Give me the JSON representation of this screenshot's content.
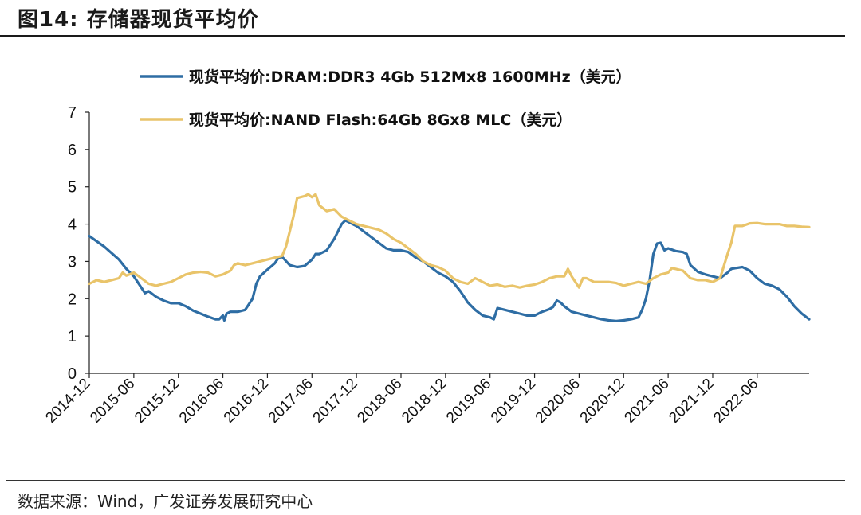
{
  "header": {
    "title": "图14:  存储器现货平均价"
  },
  "footer": {
    "source": "数据来源：Wind，广发证券发展研究中心"
  },
  "chart_data": {
    "type": "line",
    "title": "存储器现货平均价",
    "xlabel": "",
    "ylabel": "",
    "ylim": [
      0,
      7
    ],
    "yticks": [
      0,
      1,
      2,
      3,
      4,
      5,
      6,
      7
    ],
    "x_range": [
      0,
      97
    ],
    "xtick_positions": [
      0,
      6,
      12,
      18,
      24,
      30,
      36,
      42,
      48,
      54,
      60,
      66,
      72,
      78,
      84,
      90
    ],
    "xtick_labels": [
      "2014-12",
      "2015-06",
      "2015-12",
      "2016-06",
      "2016-12",
      "2017-06",
      "2017-12",
      "2018-06",
      "2018-12",
      "2019-06",
      "2019-12",
      "2020-06",
      "2020-12",
      "2021-06",
      "2021-12",
      "2022-06"
    ],
    "legend_position": "top",
    "series": [
      {
        "name": "现货平均价:DRAM:DDR3 4Gb 512Mx8 1600MHz（美元）",
        "color": "#2E6DA4",
        "points": [
          [
            0,
            3.68
          ],
          [
            2,
            3.4
          ],
          [
            4,
            3.05
          ],
          [
            5,
            2.8
          ],
          [
            6,
            2.6
          ],
          [
            7,
            2.3
          ],
          [
            7.5,
            2.15
          ],
          [
            8,
            2.2
          ],
          [
            9,
            2.05
          ],
          [
            10,
            1.95
          ],
          [
            11,
            1.88
          ],
          [
            12,
            1.88
          ],
          [
            13,
            1.8
          ],
          [
            14,
            1.68
          ],
          [
            15,
            1.6
          ],
          [
            16,
            1.52
          ],
          [
            17,
            1.45
          ],
          [
            17.5,
            1.45
          ],
          [
            18,
            1.55
          ],
          [
            18.2,
            1.42
          ],
          [
            18.5,
            1.6
          ],
          [
            19,
            1.65
          ],
          [
            20,
            1.65
          ],
          [
            21,
            1.7
          ],
          [
            22,
            2.0
          ],
          [
            22.5,
            2.4
          ],
          [
            23,
            2.6
          ],
          [
            24,
            2.78
          ],
          [
            25,
            2.95
          ],
          [
            25.5,
            3.1
          ],
          [
            26,
            3.12
          ],
          [
            27,
            2.9
          ],
          [
            28,
            2.85
          ],
          [
            29,
            2.88
          ],
          [
            30,
            3.05
          ],
          [
            30.5,
            3.2
          ],
          [
            31,
            3.2
          ],
          [
            32,
            3.3
          ],
          [
            33,
            3.6
          ],
          [
            34,
            4.0
          ],
          [
            34.5,
            4.1
          ],
          [
            35,
            4.05
          ],
          [
            36,
            3.95
          ],
          [
            37,
            3.8
          ],
          [
            38,
            3.65
          ],
          [
            39,
            3.5
          ],
          [
            40,
            3.35
          ],
          [
            41,
            3.3
          ],
          [
            42,
            3.3
          ],
          [
            43,
            3.25
          ],
          [
            44,
            3.1
          ],
          [
            45,
            3.0
          ],
          [
            46,
            2.85
          ],
          [
            47,
            2.7
          ],
          [
            48,
            2.6
          ],
          [
            49,
            2.45
          ],
          [
            50,
            2.2
          ],
          [
            51,
            1.9
          ],
          [
            52,
            1.7
          ],
          [
            53,
            1.55
          ],
          [
            54,
            1.5
          ],
          [
            54.5,
            1.45
          ],
          [
            55,
            1.75
          ],
          [
            56,
            1.7
          ],
          [
            57,
            1.65
          ],
          [
            58,
            1.6
          ],
          [
            59,
            1.55
          ],
          [
            60,
            1.55
          ],
          [
            61,
            1.65
          ],
          [
            62,
            1.72
          ],
          [
            62.5,
            1.78
          ],
          [
            63,
            1.95
          ],
          [
            63.5,
            1.9
          ],
          [
            64,
            1.8
          ],
          [
            65,
            1.65
          ],
          [
            66,
            1.6
          ],
          [
            67,
            1.55
          ],
          [
            68,
            1.5
          ],
          [
            69,
            1.45
          ],
          [
            70,
            1.42
          ],
          [
            71,
            1.4
          ],
          [
            72,
            1.42
          ],
          [
            73,
            1.45
          ],
          [
            74,
            1.5
          ],
          [
            74.5,
            1.7
          ],
          [
            75,
            2.0
          ],
          [
            75.5,
            2.5
          ],
          [
            76,
            3.2
          ],
          [
            76.5,
            3.48
          ],
          [
            77,
            3.5
          ],
          [
            77.5,
            3.3
          ],
          [
            78,
            3.35
          ],
          [
            79,
            3.28
          ],
          [
            80,
            3.25
          ],
          [
            80.5,
            3.2
          ],
          [
            81,
            2.9
          ],
          [
            82,
            2.72
          ],
          [
            83,
            2.65
          ],
          [
            84,
            2.6
          ],
          [
            85,
            2.55
          ],
          [
            86,
            2.7
          ],
          [
            86.5,
            2.8
          ],
          [
            87,
            2.82
          ],
          [
            88,
            2.85
          ],
          [
            89,
            2.75
          ],
          [
            90,
            2.55
          ],
          [
            91,
            2.4
          ],
          [
            92,
            2.35
          ],
          [
            93,
            2.25
          ],
          [
            94,
            2.05
          ],
          [
            95,
            1.8
          ],
          [
            96,
            1.6
          ],
          [
            97,
            1.45
          ]
        ]
      },
      {
        "name": "现货平均价:NAND Flash:64Gb 8Gx8 MLC（美元）",
        "color": "#E9C46A",
        "points": [
          [
            0,
            2.4
          ],
          [
            1,
            2.5
          ],
          [
            2,
            2.45
          ],
          [
            3,
            2.5
          ],
          [
            4,
            2.55
          ],
          [
            4.5,
            2.7
          ],
          [
            5,
            2.62
          ],
          [
            6,
            2.7
          ],
          [
            7,
            2.55
          ],
          [
            8,
            2.4
          ],
          [
            9,
            2.35
          ],
          [
            10,
            2.4
          ],
          [
            11,
            2.45
          ],
          [
            12,
            2.55
          ],
          [
            13,
            2.65
          ],
          [
            14,
            2.7
          ],
          [
            15,
            2.72
          ],
          [
            16,
            2.7
          ],
          [
            17,
            2.6
          ],
          [
            18,
            2.65
          ],
          [
            19,
            2.75
          ],
          [
            19.5,
            2.9
          ],
          [
            20,
            2.95
          ],
          [
            21,
            2.9
          ],
          [
            22,
            2.95
          ],
          [
            23,
            3.0
          ],
          [
            24,
            3.05
          ],
          [
            25,
            3.1
          ],
          [
            26,
            3.15
          ],
          [
            26.5,
            3.4
          ],
          [
            27,
            3.8
          ],
          [
            27.5,
            4.2
          ],
          [
            28,
            4.7
          ],
          [
            29,
            4.75
          ],
          [
            29.5,
            4.8
          ],
          [
            30,
            4.72
          ],
          [
            30.5,
            4.8
          ],
          [
            31,
            4.5
          ],
          [
            32,
            4.35
          ],
          [
            33,
            4.4
          ],
          [
            34,
            4.2
          ],
          [
            35,
            4.1
          ],
          [
            36,
            4.0
          ],
          [
            37,
            3.95
          ],
          [
            38,
            3.9
          ],
          [
            39,
            3.85
          ],
          [
            40,
            3.75
          ],
          [
            41,
            3.6
          ],
          [
            42,
            3.5
          ],
          [
            43,
            3.35
          ],
          [
            44,
            3.2
          ],
          [
            45,
            3.0
          ],
          [
            46,
            2.9
          ],
          [
            47,
            2.85
          ],
          [
            48,
            2.75
          ],
          [
            49,
            2.55
          ],
          [
            50,
            2.45
          ],
          [
            51,
            2.4
          ],
          [
            52,
            2.55
          ],
          [
            53,
            2.45
          ],
          [
            54,
            2.35
          ],
          [
            55,
            2.38
          ],
          [
            56,
            2.32
          ],
          [
            57,
            2.35
          ],
          [
            58,
            2.3
          ],
          [
            59,
            2.35
          ],
          [
            60,
            2.38
          ],
          [
            61,
            2.45
          ],
          [
            62,
            2.55
          ],
          [
            63,
            2.6
          ],
          [
            64,
            2.6
          ],
          [
            64.5,
            2.8
          ],
          [
            65,
            2.6
          ],
          [
            66,
            2.3
          ],
          [
            66.5,
            2.55
          ],
          [
            67,
            2.55
          ],
          [
            68,
            2.45
          ],
          [
            69,
            2.45
          ],
          [
            70,
            2.45
          ],
          [
            71,
            2.42
          ],
          [
            72,
            2.35
          ],
          [
            73,
            2.4
          ],
          [
            74,
            2.45
          ],
          [
            75,
            2.4
          ],
          [
            76,
            2.55
          ],
          [
            77,
            2.65
          ],
          [
            78,
            2.7
          ],
          [
            78.5,
            2.82
          ],
          [
            79,
            2.8
          ],
          [
            80,
            2.75
          ],
          [
            81,
            2.55
          ],
          [
            82,
            2.5
          ],
          [
            83,
            2.5
          ],
          [
            84,
            2.45
          ],
          [
            85,
            2.55
          ],
          [
            86,
            3.2
          ],
          [
            86.5,
            3.5
          ],
          [
            87,
            3.95
          ],
          [
            88,
            3.95
          ],
          [
            89,
            4.02
          ],
          [
            90,
            4.03
          ],
          [
            91,
            4.0
          ],
          [
            92,
            4.0
          ],
          [
            93,
            4.0
          ],
          [
            94,
            3.95
          ],
          [
            95,
            3.95
          ],
          [
            96,
            3.93
          ],
          [
            97,
            3.92
          ]
        ]
      }
    ]
  }
}
